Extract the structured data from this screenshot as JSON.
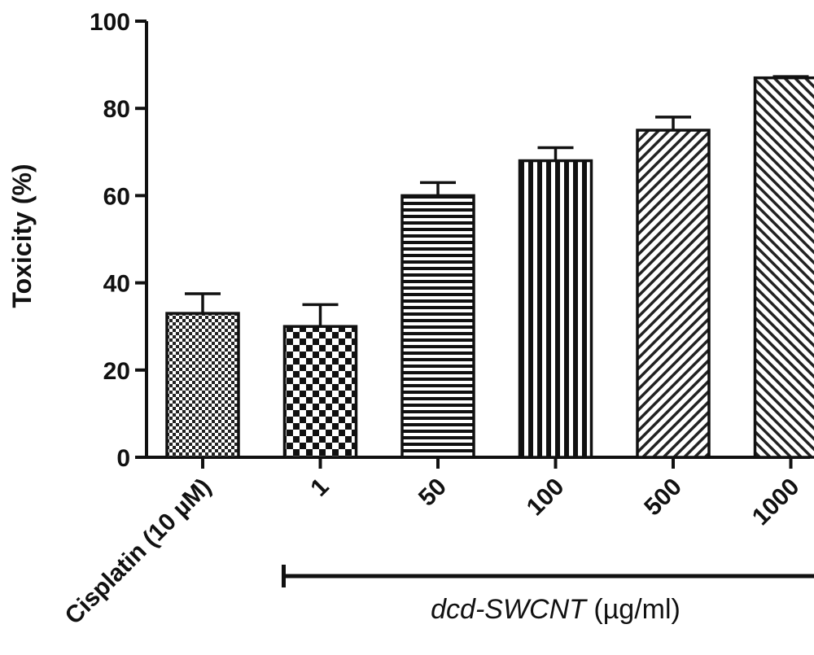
{
  "chart_data": {
    "type": "bar",
    "ylabel": "Toxicity (%)",
    "ylim": [
      0,
      100
    ],
    "yticks": [
      0,
      20,
      40,
      60,
      80,
      100
    ],
    "grid": false,
    "categories": [
      "Cisplatin (10 µM)",
      "1",
      "50",
      "100",
      "500",
      "1000"
    ],
    "values": [
      33,
      30,
      60,
      68,
      75,
      87
    ],
    "errors": [
      4.5,
      5,
      3,
      3,
      3,
      0.3
    ],
    "patterns": [
      "fine-check",
      "checkerboard",
      "horizontal",
      "vertical",
      "diagonal",
      "diagonal-back"
    ],
    "group_label": {
      "italic": "dcd-SWCNT",
      "normal": " (µg/ml)",
      "category_span": [
        1,
        5
      ]
    }
  }
}
